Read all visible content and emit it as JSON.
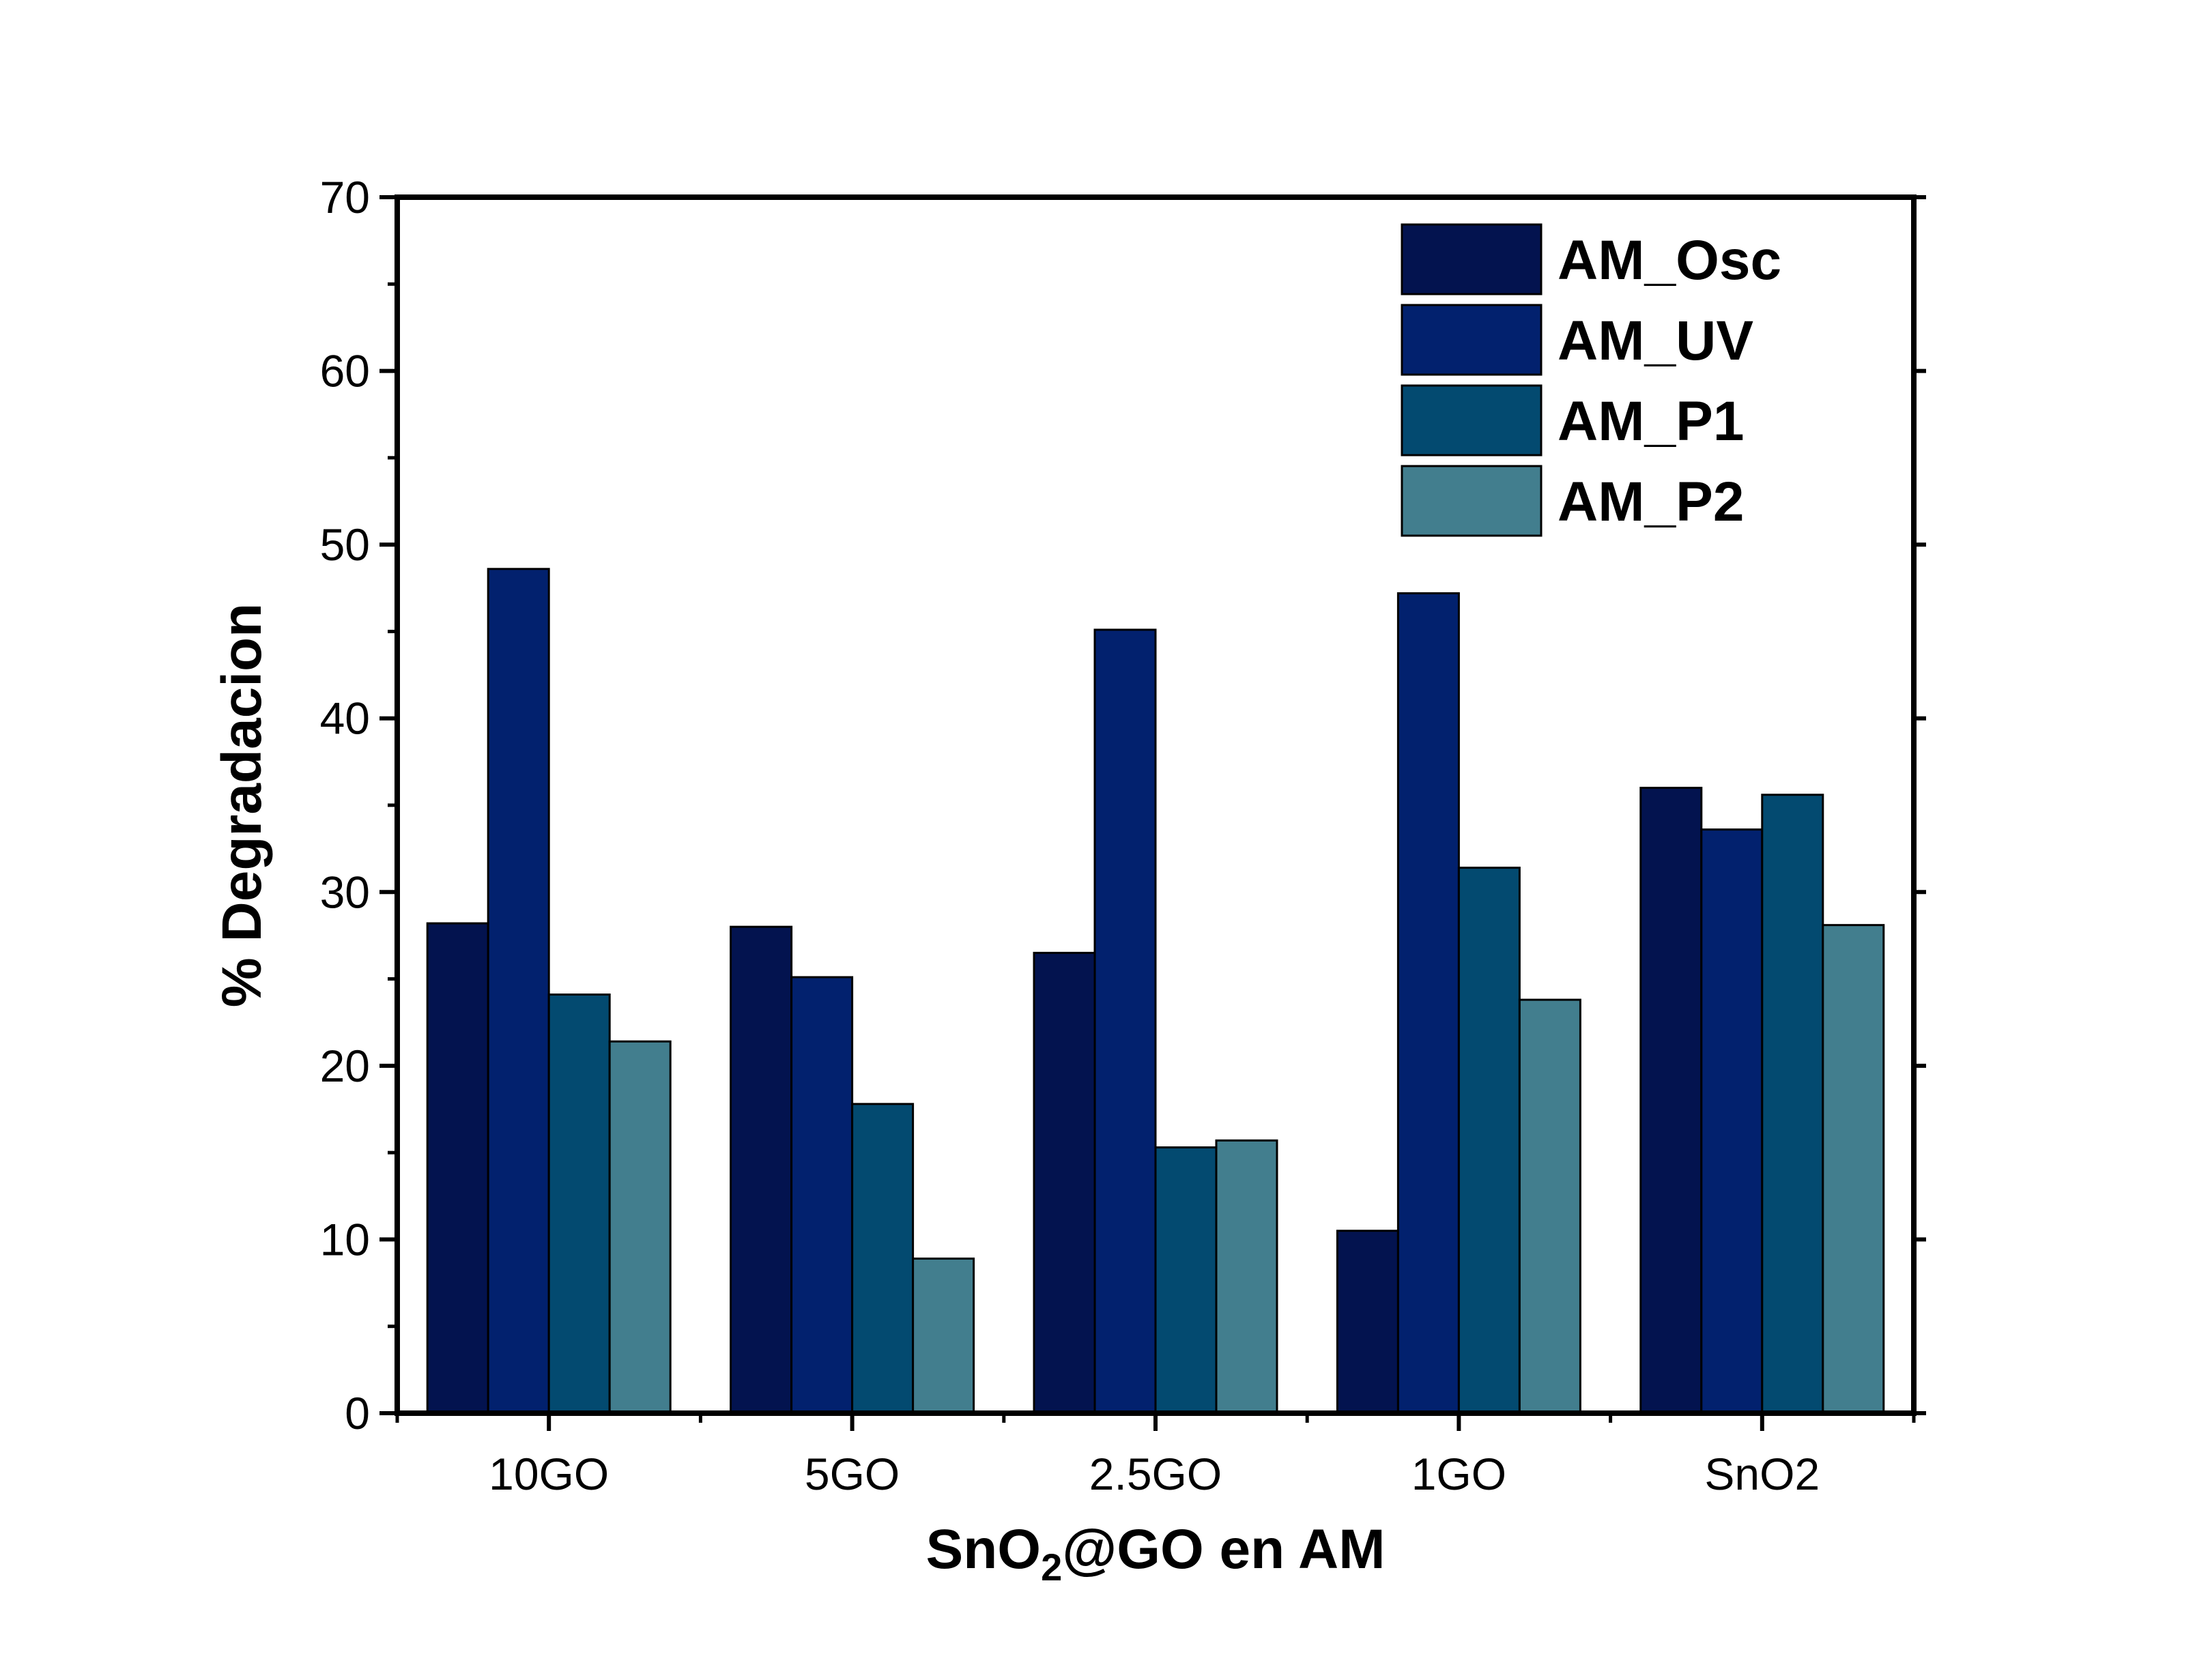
{
  "chart_data": {
    "type": "bar",
    "categories": [
      "10GO",
      "5GO",
      "2.5GO",
      "1GO",
      "SnO2"
    ],
    "series": [
      {
        "name": "AM_Osc",
        "color": "#03134f",
        "values": [
          28.2,
          28.0,
          26.5,
          10.5,
          36.0
        ]
      },
      {
        "name": "AM_UV",
        "color": "#02216e",
        "values": [
          48.6,
          25.1,
          45.1,
          47.2,
          33.6
        ]
      },
      {
        "name": "AM_P1",
        "color": "#034a70",
        "values": [
          24.1,
          17.8,
          15.3,
          31.4,
          35.6
        ]
      },
      {
        "name": "AM_P2",
        "color": "#427e8e",
        "values": [
          21.4,
          8.9,
          15.7,
          23.8,
          28.1
        ]
      }
    ],
    "xlabel": {
      "main": "SnO",
      "sub": "2",
      "rest": "@GO en AM"
    },
    "ylabel": "% Degradacion",
    "ylim": [
      0,
      70
    ],
    "yticks": [
      "0",
      "10",
      "20",
      "30",
      "40",
      "50",
      "60",
      "70"
    ],
    "legend_position": "top-right",
    "grid": false
  }
}
